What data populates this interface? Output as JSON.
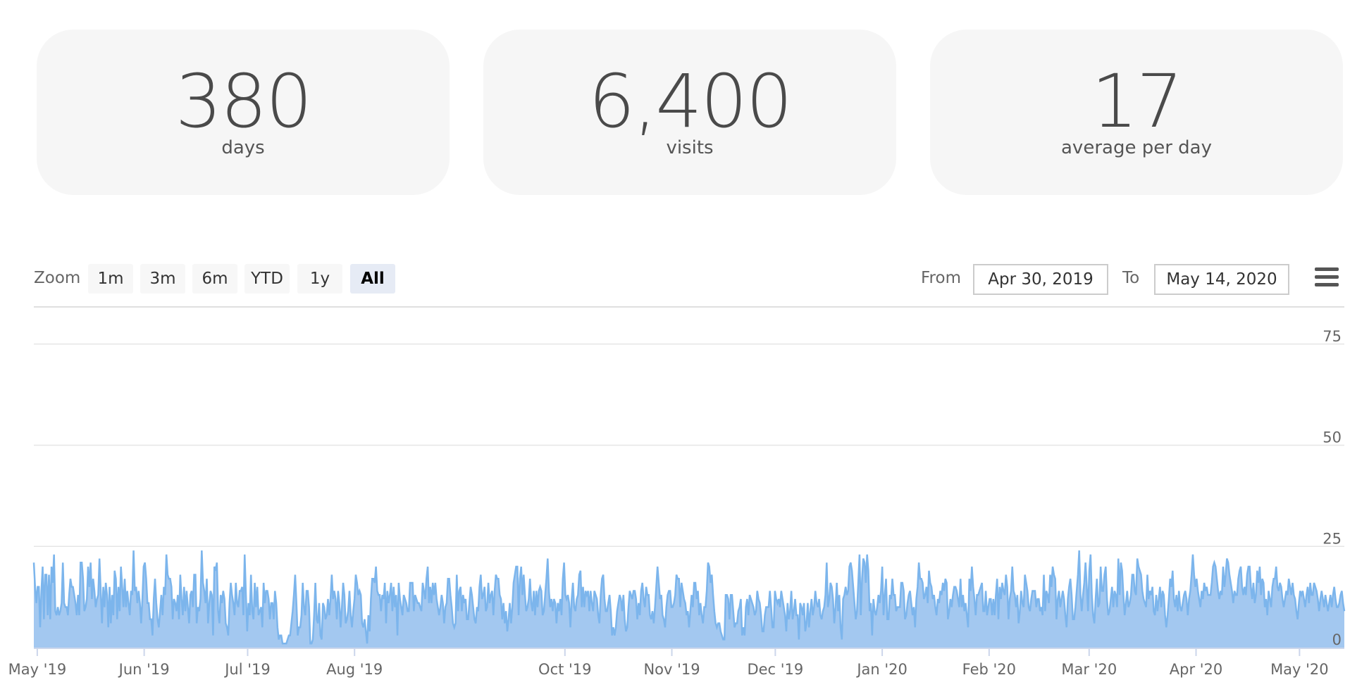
{
  "stats": [
    {
      "value": "380",
      "label": "days"
    },
    {
      "value": "6,400",
      "label": "visits"
    },
    {
      "value": "17",
      "label": "average per day"
    }
  ],
  "range_selector": {
    "zoom_label": "Zoom",
    "buttons": [
      "1m",
      "3m",
      "6m",
      "YTD",
      "1y",
      "All"
    ],
    "active": "All",
    "from_label": "From",
    "from_value": "Apr 30, 2019",
    "to_label": "To",
    "to_value": "May 14, 2020"
  },
  "colors": {
    "series_fill": "#a3c8f0",
    "series_line": "#7cb5ec",
    "grid": "#e6e6e6"
  },
  "icons": {
    "menu": "hamburger-menu-icon"
  },
  "chart_data": {
    "type": "area",
    "x_start": "2019-04-30",
    "x_end": "2020-05-14",
    "ylim": [
      0,
      80
    ],
    "yticks": [
      0,
      25,
      50,
      75
    ],
    "ytick_labels": [
      "0",
      "25",
      "50",
      "75"
    ],
    "xtick_labels": [
      {
        "date": "2019-05-01",
        "label": "May '19"
      },
      {
        "date": "2019-06-01",
        "label": "Jun '19"
      },
      {
        "date": "2019-07-01",
        "label": "Jul '19"
      },
      {
        "date": "2019-08-01",
        "label": "Aug '19"
      },
      {
        "date": "2019-10-01",
        "label": "Oct '19"
      },
      {
        "date": "2019-11-01",
        "label": "Nov '19"
      },
      {
        "date": "2019-12-01",
        "label": "Dec '19"
      },
      {
        "date": "2020-01-01",
        "label": "Jan '20"
      },
      {
        "date": "2020-02-01",
        "label": "Feb '20"
      },
      {
        "date": "2020-03-01",
        "label": "Mar '20"
      },
      {
        "date": "2020-04-01",
        "label": "Apr '20"
      },
      {
        "date": "2020-05-01",
        "label": "May '20"
      }
    ],
    "series": [
      {
        "values": [
          21,
          15,
          11,
          15,
          15,
          5,
          14,
          20,
          7,
          18,
          18,
          8,
          18,
          7,
          20,
          16,
          23,
          9,
          8,
          10,
          8,
          9,
          11,
          21,
          11,
          10,
          10,
          8,
          13,
          17,
          15,
          15,
          13,
          11,
          8,
          13,
          8,
          21,
          21,
          17,
          9,
          10,
          12,
          20,
          15,
          21,
          12,
          17,
          14,
          10,
          12,
          13,
          22,
          14,
          6,
          15,
          10,
          16,
          13,
          5,
          15,
          6,
          13,
          8,
          19,
          17,
          7,
          15,
          9,
          20,
          15,
          10,
          17,
          10,
          14,
          11,
          8,
          14,
          13,
          24,
          14,
          15,
          11,
          14,
          11,
          6,
          12,
          20,
          21,
          17,
          11,
          11,
          7,
          7,
          3,
          12,
          17,
          11,
          7,
          5,
          9,
          13,
          8,
          15,
          13,
          23,
          18,
          17,
          17,
          15,
          7,
          12,
          11,
          9,
          13,
          7,
          18,
          12,
          8,
          15,
          9,
          14,
          10,
          6,
          13,
          14,
          10,
          18,
          18,
          6,
          10,
          9,
          12,
          24,
          16,
          14,
          11,
          17,
          6,
          11,
          14,
          13,
          3,
          20,
          19,
          21,
          9,
          6,
          13,
          11,
          14,
          12,
          6,
          5,
          3,
          11,
          16,
          13,
          11,
          8,
          16,
          11,
          10,
          14,
          14,
          15,
          8,
          23,
          13,
          4,
          11,
          8,
          18,
          9,
          7,
          16,
          10,
          15,
          8,
          9,
          10,
          5,
          16,
          11,
          14,
          14,
          12,
          7,
          11,
          11,
          7,
          14,
          11,
          5,
          2,
          3,
          3,
          1,
          1,
          1,
          1,
          2,
          3,
          3,
          6,
          9,
          13,
          18,
          11,
          3,
          5,
          5,
          8,
          16,
          10,
          8,
          14,
          14,
          10,
          1,
          1,
          2,
          8,
          16,
          7,
          6,
          11,
          3,
          2,
          11,
          10,
          7,
          8,
          12,
          8,
          12,
          18,
          12,
          14,
          12,
          7,
          14,
          11,
          5,
          10,
          16,
          13,
          6,
          7,
          9,
          14,
          8,
          5,
          9,
          12,
          18,
          16,
          13,
          14,
          13,
          6,
          5,
          7,
          4,
          1,
          8,
          4,
          12,
          17,
          17,
          16,
          20,
          14,
          13,
          13,
          9,
          13,
          12,
          16,
          6,
          14,
          11,
          13,
          16,
          9,
          15,
          10,
          13,
          3,
          16,
          12,
          10,
          8,
          13,
          12,
          11,
          9,
          9,
          16,
          16,
          16,
          9,
          13,
          12,
          11,
          11,
          10,
          9,
          16,
          14,
          12,
          17,
          20,
          11,
          15,
          11,
          16,
          13,
          16,
          12,
          10,
          8,
          10,
          13,
          11,
          6,
          10,
          11,
          17,
          17,
          13,
          10,
          6,
          5,
          6,
          18,
          9,
          14,
          15,
          9,
          13,
          11,
          12,
          7,
          7,
          11,
          15,
          13,
          10,
          7,
          6,
          10,
          9,
          15,
          18,
          12,
          13,
          15,
          9,
          10,
          16,
          11,
          13,
          14,
          8,
          14,
          18,
          17,
          17,
          13,
          12,
          7,
          11,
          6,
          9,
          4,
          7,
          11,
          6,
          10,
          16,
          18,
          20,
          20,
          8,
          17,
          20,
          13,
          18,
          13,
          9,
          10,
          12,
          17,
          11,
          9,
          14,
          8,
          14,
          10,
          14,
          15,
          14,
          8,
          9,
          13,
          17,
          22,
          14,
          10,
          12,
          9,
          12,
          11,
          6,
          11,
          9,
          12,
          8,
          17,
          21,
          13,
          12,
          13,
          11,
          5,
          12,
          16,
          10,
          9,
          12,
          13,
          18,
          19,
          10,
          15,
          10,
          14,
          13,
          14,
          9,
          14,
          11,
          9,
          14,
          13,
          12,
          8,
          6,
          13,
          17,
          18,
          12,
          9,
          9,
          11,
          13,
          9,
          3,
          5,
          3,
          5,
          9,
          11,
          13,
          12,
          9,
          13,
          7,
          4,
          5,
          10,
          14,
          13,
          12,
          14,
          14,
          12,
          7,
          11,
          8,
          14,
          16,
          12,
          10,
          15,
          13,
          13,
          8,
          7,
          9,
          6,
          10,
          15,
          20,
          16,
          12,
          13,
          8,
          7,
          5,
          10,
          13,
          14,
          14,
          10,
          10,
          11,
          13,
          18,
          17,
          17,
          10,
          16,
          14,
          12,
          11,
          8,
          9,
          5,
          9,
          13,
          10,
          16,
          16,
          12,
          14,
          8,
          11,
          8,
          6,
          10,
          10,
          14,
          21,
          20,
          16,
          18,
          13,
          9,
          6,
          5,
          6,
          6,
          4,
          3,
          2,
          2,
          13,
          13,
          12,
          7,
          13,
          13,
          9,
          5,
          6,
          6,
          9,
          10,
          12,
          3,
          5,
          3,
          10,
          12,
          8,
          13,
          12,
          11,
          10,
          8,
          9,
          14,
          12,
          11,
          8,
          4,
          4,
          8,
          10,
          10,
          10,
          14,
          10,
          5,
          5,
          14,
          12,
          11,
          12,
          10,
          14,
          12,
          10,
          8,
          4,
          11,
          7,
          9,
          14,
          7,
          9,
          12,
          8,
          8,
          2,
          11,
          10,
          8,
          11,
          4,
          6,
          11,
          5,
          9,
          12,
          8,
          10,
          14,
          11,
          10,
          12,
          8,
          7,
          9,
          10,
          13,
          21,
          10,
          12,
          16,
          15,
          12,
          6,
          10,
          16,
          9,
          13,
          5,
          2,
          12,
          13,
          15,
          13,
          14,
          20,
          21,
          19,
          15,
          11,
          7,
          9,
          16,
          23,
          8,
          17,
          22,
          21,
          16,
          23,
          19,
          9,
          11,
          3,
          12,
          9,
          8,
          10,
          13,
          11,
          14,
          20,
          8,
          13,
          17,
          7,
          7,
          13,
          12,
          17,
          13,
          13,
          9,
          10,
          10,
          10,
          16,
          16,
          14,
          7,
          8,
          11,
          13,
          14,
          11,
          8,
          10,
          5,
          12,
          15,
          21,
          17,
          17,
          16,
          12,
          13,
          15,
          11,
          19,
          16,
          15,
          12,
          13,
          10,
          8,
          12,
          11,
          14,
          13,
          16,
          14,
          17,
          16,
          7,
          9,
          12,
          10,
          13,
          15,
          15,
          14,
          12,
          10,
          17,
          10,
          13,
          9,
          11,
          8,
          5,
          17,
          14,
          20,
          15,
          12,
          8,
          13,
          13,
          14,
          15,
          16,
          9,
          9,
          14,
          8,
          10,
          12,
          12,
          8,
          12,
          8,
          13,
          17,
          7,
          15,
          12,
          16,
          14,
          13,
          18,
          15,
          7,
          12,
          14,
          20,
          14,
          13,
          10,
          13,
          6,
          9,
          14,
          11,
          10,
          18,
          16,
          14,
          10,
          9,
          12,
          14,
          14,
          14,
          10,
          12,
          12,
          9,
          10,
          8,
          18,
          9,
          14,
          13,
          11,
          18,
          15,
          20,
          18,
          17,
          7,
          12,
          14,
          10,
          12,
          14,
          12,
          8,
          5,
          12,
          15,
          17,
          13,
          7,
          7,
          10,
          14,
          18,
          24,
          13,
          9,
          13,
          16,
          21,
          15,
          9,
          19,
          23,
          13,
          8,
          6,
          12,
          17,
          10,
          11,
          20,
          14,
          14,
          18,
          20,
          12,
          8,
          9,
          12,
          15,
          10,
          14,
          13,
          10,
          22,
          13,
          21,
          19,
          13,
          8,
          11,
          14,
          10,
          11,
          13,
          18,
          18,
          14,
          13,
          22,
          20,
          19,
          18,
          14,
          12,
          11,
          10,
          18,
          12,
          14,
          13,
          15,
          9,
          8,
          13,
          9,
          12,
          15,
          10,
          14,
          13,
          8,
          5,
          8,
          12,
          17,
          15,
          19,
          12,
          10,
          13,
          9,
          14,
          10,
          9,
          11,
          13,
          14,
          12,
          8,
          12,
          14,
          18,
          23,
          18,
          15,
          17,
          14,
          12,
          10,
          14,
          12,
          16,
          14,
          15,
          13,
          13,
          13,
          16,
          20,
          21,
          20,
          17,
          14,
          12,
          14,
          13,
          20,
          15,
          18,
          22,
          21,
          18,
          16,
          14,
          11,
          14,
          13,
          13,
          17,
          19,
          20,
          15,
          13,
          15,
          13,
          18,
          20,
          20,
          15,
          12,
          16,
          11,
          13,
          19,
          16,
          20,
          13,
          17,
          16,
          10,
          12,
          8,
          14,
          12,
          10,
          15,
          17,
          17,
          20,
          15,
          14,
          16,
          15,
          12,
          10,
          12,
          14,
          13,
          17,
          15,
          13,
          16,
          13,
          12,
          9,
          7,
          11,
          14,
          13,
          14,
          12,
          10,
          13,
          15,
          11,
          16,
          13,
          13,
          16,
          15,
          14,
          12,
          9,
          12,
          14,
          12,
          10,
          13,
          11,
          9,
          11,
          13,
          10,
          13,
          15,
          12,
          10,
          10,
          11,
          13,
          14,
          11,
          9
        ]
      }
    ]
  }
}
